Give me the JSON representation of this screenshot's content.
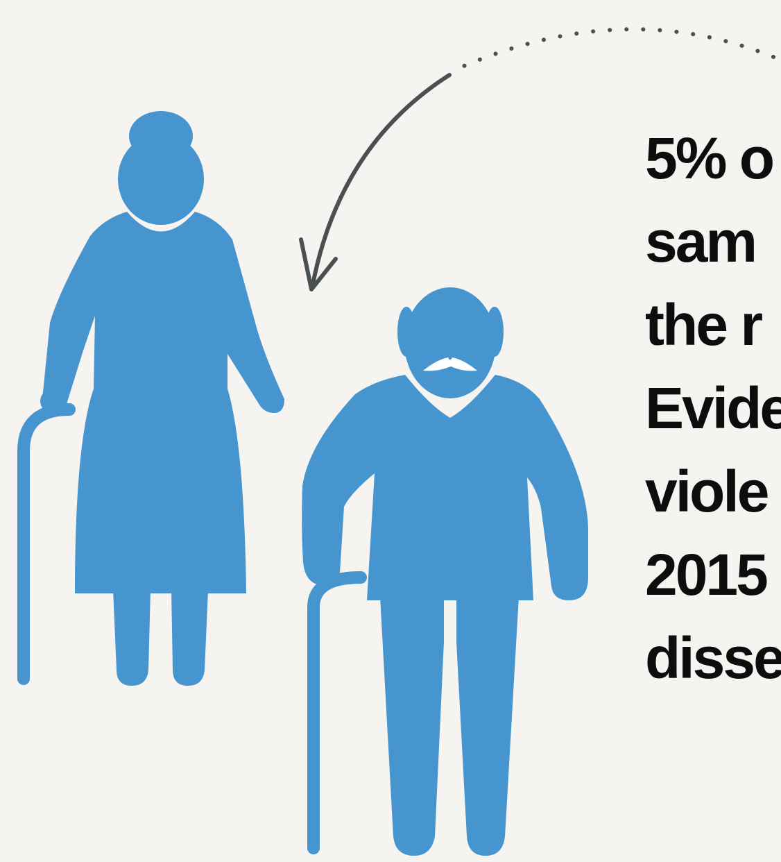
{
  "colors": {
    "background": "#f6f4f0",
    "figure": "#4795cf",
    "arrow": "#4a4f52",
    "text": "#0d0d0d"
  },
  "icons": {
    "figure_left": "elderly-woman-with-cane-icon",
    "figure_right": "elderly-man-with-cane-icon",
    "arrow": "dotted-curved-arrow-icon"
  },
  "text_lines": [
    "5% o",
    "sam",
    "the r",
    "Evide",
    "viole",
    "2015",
    "disse"
  ]
}
